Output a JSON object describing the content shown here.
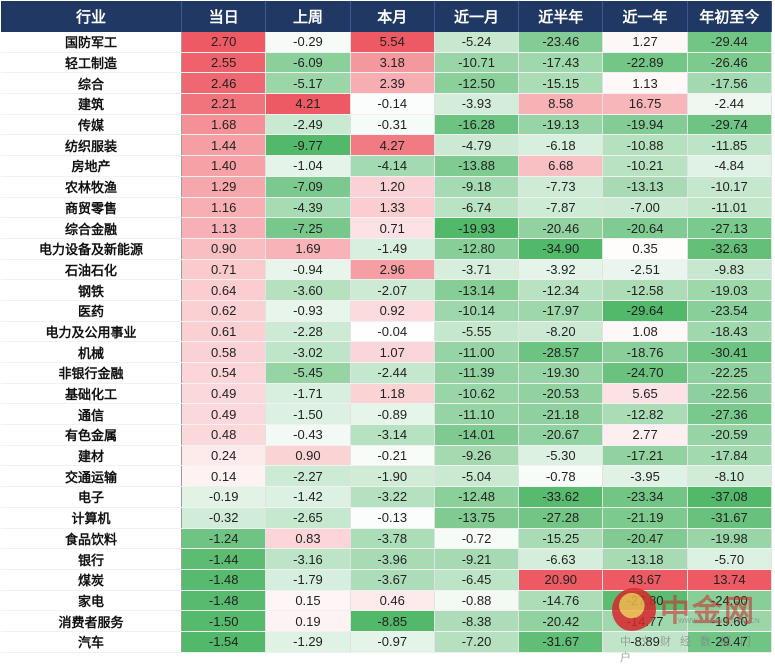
{
  "table": {
    "headers": [
      "行业",
      "当日",
      "上周",
      "本月",
      "近一月",
      "近半年",
      "近一年",
      "年初至今"
    ],
    "rows": [
      {
        "name": "国防军工",
        "values": [
          2.7,
          -0.29,
          5.54,
          -5.24,
          -23.46,
          1.27,
          -29.44
        ]
      },
      {
        "name": "轻工制造",
        "values": [
          2.55,
          -6.09,
          3.18,
          -10.71,
          -17.43,
          -22.89,
          -26.46
        ]
      },
      {
        "name": "综合",
        "values": [
          2.46,
          -5.17,
          2.39,
          -12.5,
          -15.15,
          1.13,
          -17.56
        ]
      },
      {
        "name": "建筑",
        "values": [
          2.21,
          4.21,
          -0.14,
          -3.93,
          8.58,
          16.75,
          -2.44
        ]
      },
      {
        "name": "传媒",
        "values": [
          1.68,
          -2.49,
          -0.31,
          -16.28,
          -19.13,
          -19.94,
          -29.74
        ]
      },
      {
        "name": "纺织服装",
        "values": [
          1.44,
          -9.77,
          4.27,
          -4.79,
          -6.18,
          -10.88,
          -11.85
        ]
      },
      {
        "name": "房地产",
        "values": [
          1.4,
          -1.04,
          -4.14,
          -13.88,
          6.68,
          -10.21,
          -4.84
        ]
      },
      {
        "name": "农林牧渔",
        "values": [
          1.29,
          -7.09,
          1.2,
          -9.18,
          -7.73,
          -13.13,
          -10.17
        ]
      },
      {
        "name": "商贸零售",
        "values": [
          1.16,
          -4.39,
          1.33,
          -6.74,
          -7.87,
          -7.0,
          -11.01
        ]
      },
      {
        "name": "综合金融",
        "values": [
          1.13,
          -7.25,
          0.71,
          -19.93,
          -20.46,
          -20.64,
          -27.13
        ]
      },
      {
        "name": "电力设备及新能源",
        "values": [
          0.9,
          1.69,
          -1.49,
          -12.8,
          -34.9,
          0.35,
          -32.63
        ]
      },
      {
        "name": "石油石化",
        "values": [
          0.71,
          -0.94,
          2.96,
          -3.71,
          -3.92,
          -2.51,
          -9.83
        ]
      },
      {
        "name": "钢铁",
        "values": [
          0.64,
          -3.6,
          -2.07,
          -13.14,
          -12.34,
          -12.58,
          -19.03
        ]
      },
      {
        "name": "医药",
        "values": [
          0.62,
          -0.93,
          0.92,
          -10.14,
          -17.97,
          -29.64,
          -23.54
        ]
      },
      {
        "name": "电力及公用事业",
        "values": [
          0.61,
          -2.28,
          -0.04,
          -5.55,
          -8.2,
          1.08,
          -18.43
        ]
      },
      {
        "name": "机械",
        "values": [
          0.58,
          -3.02,
          1.07,
          -11.0,
          -28.57,
          -18.76,
          -30.41
        ]
      },
      {
        "name": "非银行金融",
        "values": [
          0.54,
          -5.45,
          -2.44,
          -11.39,
          -19.3,
          -24.7,
          -22.25
        ]
      },
      {
        "name": "基础化工",
        "values": [
          0.49,
          -1.71,
          1.18,
          -10.62,
          -20.53,
          5.65,
          -22.56
        ]
      },
      {
        "name": "通信",
        "values": [
          0.49,
          -1.5,
          -0.89,
          -11.1,
          -21.18,
          -12.82,
          -27.36
        ]
      },
      {
        "name": "有色金属",
        "values": [
          0.48,
          -0.43,
          -3.14,
          -14.01,
          -20.67,
          2.77,
          -20.59
        ]
      },
      {
        "name": "建材",
        "values": [
          0.24,
          0.9,
          -0.21,
          -9.26,
          -5.3,
          -17.21,
          -17.84
        ]
      },
      {
        "name": "交通运输",
        "values": [
          0.14,
          -2.27,
          -1.9,
          -5.04,
          -0.78,
          -3.95,
          -8.1
        ]
      },
      {
        "name": "电子",
        "values": [
          -0.19,
          -1.42,
          -3.22,
          -12.48,
          -33.62,
          -23.34,
          -37.08
        ]
      },
      {
        "name": "计算机",
        "values": [
          -0.32,
          -2.65,
          -0.13,
          -13.75,
          -27.28,
          -21.19,
          -31.67
        ]
      },
      {
        "name": "食品饮料",
        "values": [
          -1.24,
          0.83,
          -3.78,
          -0.72,
          -15.25,
          -20.47,
          -19.98
        ]
      },
      {
        "name": "银行",
        "values": [
          -1.44,
          -3.16,
          -3.96,
          -9.21,
          -6.63,
          -13.18,
          -5.7
        ]
      },
      {
        "name": "煤炭",
        "values": [
          -1.48,
          -1.79,
          -3.67,
          -6.45,
          20.9,
          43.67,
          13.74
        ]
      },
      {
        "name": "家电",
        "values": [
          -1.48,
          0.15,
          0.46,
          -0.88,
          -14.76,
          -27.8,
          -24.0
        ]
      },
      {
        "name": "消费者服务",
        "values": [
          -1.5,
          0.19,
          -8.85,
          -8.38,
          -20.42,
          -14.77,
          -19.6
        ]
      },
      {
        "name": "汽车",
        "values": [
          -1.54,
          -1.29,
          -0.97,
          -7.2,
          -31.67,
          -8.89,
          -29.47
        ]
      }
    ]
  },
  "watermark": {
    "brand": "中金网",
    "url": "WWW.CNGOLD.COM.CN",
    "subtitle": "中文财经数据门户"
  },
  "colors": {
    "header_bg": "#1f3864",
    "header_text": "#ffffff",
    "positive_max": "#ee5a64",
    "negative_max": "#52b86a",
    "neutral": "#ffffff"
  }
}
